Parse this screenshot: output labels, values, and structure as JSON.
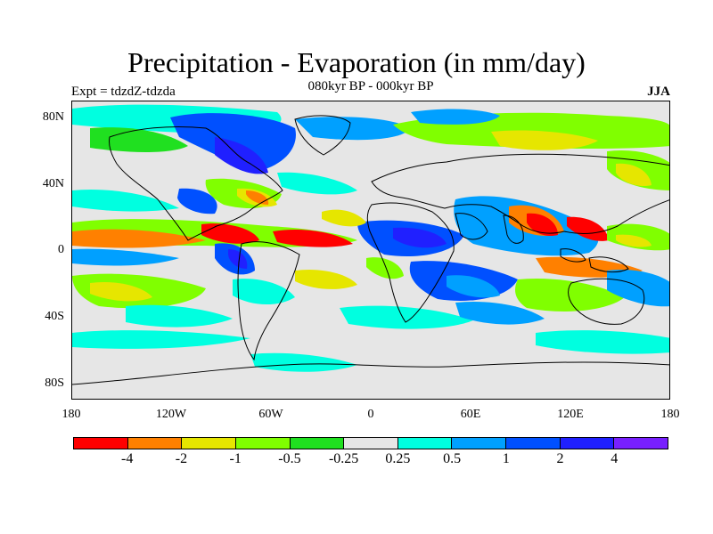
{
  "header": {
    "title": "Precipitation - Evaporation (in mm/day)",
    "subtitle": "080kyr BP - 000kyr BP",
    "experiment": "Expt = tdzdZ-tdzda",
    "season": "JJA"
  },
  "axes": {
    "y_ticks": [
      "80N",
      "40N",
      "0",
      "40S",
      "80S"
    ],
    "x_ticks": [
      "180",
      "120W",
      "60W",
      "0",
      "60E",
      "120E",
      "180"
    ]
  },
  "colorbar": {
    "colors": [
      "#ff0000",
      "#ff8000",
      "#e6e600",
      "#80ff00",
      "#20e020",
      "#e6e6e6",
      "#00ffe0",
      "#00a0ff",
      "#0050ff",
      "#2020ff",
      "#7820ff"
    ],
    "labels": [
      "-4",
      "-2",
      "-1",
      "-0.5",
      "-0.25",
      "0.25",
      "0.5",
      "1",
      "2",
      "4"
    ]
  },
  "map": {
    "projection": "cylindrical equidistant",
    "lon_range": [
      -180,
      180
    ],
    "lat_range": [
      -90,
      90
    ],
    "background_color": "#e6e6e6",
    "coastline_color": "#000000"
  }
}
